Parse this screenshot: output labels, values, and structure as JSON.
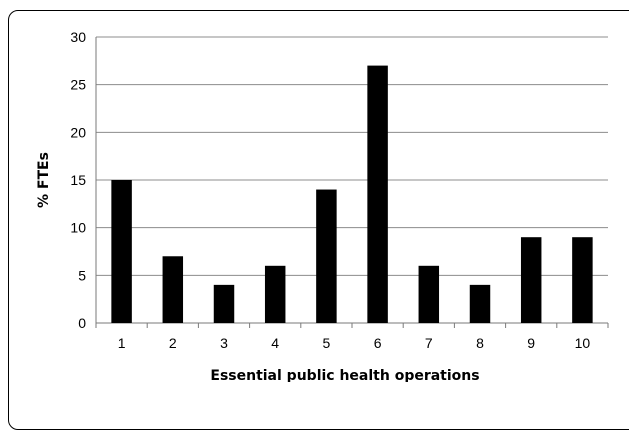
{
  "chart_data": {
    "type": "bar",
    "title": "",
    "xlabel": "Essential public health operations",
    "ylabel": "% FTEs",
    "categories": [
      "1",
      "2",
      "3",
      "4",
      "5",
      "6",
      "7",
      "8",
      "9",
      "10"
    ],
    "values": [
      15,
      7,
      4,
      6,
      14,
      27,
      6,
      4,
      9,
      9
    ],
    "ylim": [
      0,
      30
    ],
    "yticks": [
      0,
      5,
      10,
      15,
      20,
      25,
      30
    ],
    "grid": "horizontal",
    "legend": "none",
    "bar_color": "#000000",
    "grid_color": "#8c8c8c"
  }
}
